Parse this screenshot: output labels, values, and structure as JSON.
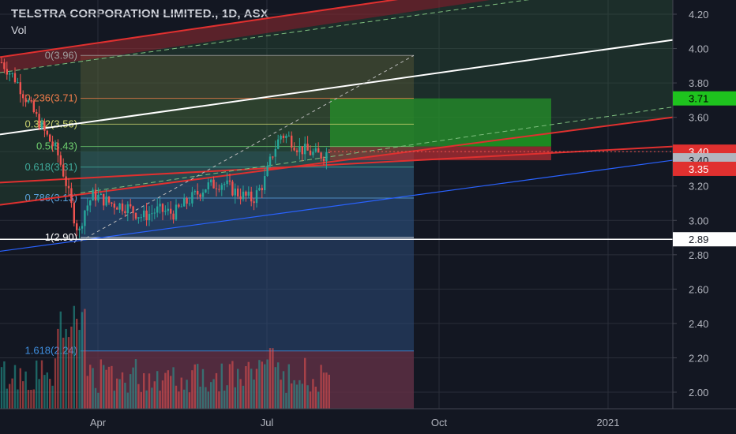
{
  "header": {
    "symbol_line": "TELSTRA CORPORATION LIMITED., 1D, ASX",
    "volume_label": "Vol"
  },
  "colors": {
    "background": "#131722",
    "up": "#26a69a",
    "down": "#ef5350",
    "channel_red": "#e0302f",
    "channel_blue": "#2962ff",
    "green_zone": "#22b022",
    "red_zone": "#b22d33",
    "blue_zone": "#2c4a78",
    "white_line": "#ffffff"
  },
  "chart_data": {
    "type": "candlestick",
    "y_axis": {
      "min": 1.92,
      "max": 4.27,
      "ticks": [
        "2.00",
        "2.20",
        "2.40",
        "2.60",
        "2.80",
        "3.00",
        "3.20",
        "3.40",
        "3.60",
        "3.80",
        "4.00",
        "4.20"
      ]
    },
    "x_axis": {
      "labels": [
        "Apr",
        "Jul",
        "Oct",
        "2021"
      ]
    },
    "price_tags": [
      {
        "value": "3.71",
        "bg": "#1ec31e",
        "fg": "#000000",
        "y": 3.71
      },
      {
        "value": "3.40",
        "bg": "#e0302f",
        "fg": "#ffffff",
        "y": 3.4
      },
      {
        "value": "3.40",
        "bg": "#b2b5be",
        "fg": "#131722",
        "y": 3.35
      },
      {
        "value": "3.35",
        "bg": "#e0302f",
        "fg": "#ffffff",
        "y": 3.3
      },
      {
        "value": "2.89",
        "bg": "#ffffff",
        "fg": "#131722",
        "y": 2.89
      }
    ],
    "fibonacci_levels": [
      {
        "label": "0(3.96)",
        "price": 3.96
      },
      {
        "label": "0.236(3.71)",
        "price": 3.71
      },
      {
        "label": "0.382(3.56)",
        "price": 3.56
      },
      {
        "label": "0.5(3.43)",
        "price": 3.43
      },
      {
        "label": "0.618(3.31)",
        "price": 3.31
      },
      {
        "label": "0.786(3.13)",
        "price": 3.13
      },
      {
        "label": "1(2.90)",
        "price": 2.9
      },
      {
        "label": "1.618(2.24)",
        "price": 2.24
      }
    ]
  }
}
